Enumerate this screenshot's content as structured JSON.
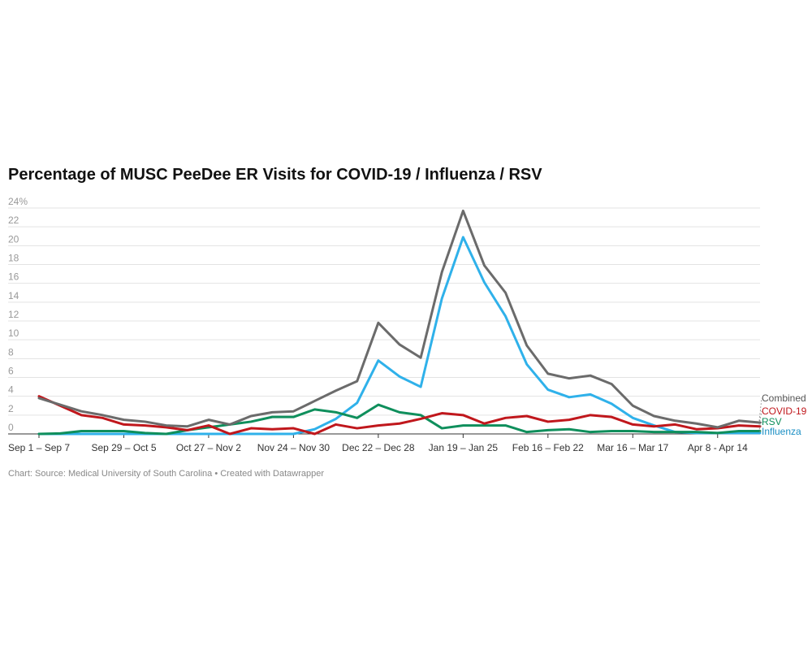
{
  "chart_data": {
    "type": "line",
    "title": "Percentage of MUSC PeeDee ER Visits for COVID-19 / Influenza / RSV",
    "footer": "Chart: Source: Medical University of South Carolina • Created with Datawrapper",
    "y_unit": "%",
    "ylim": [
      0,
      24
    ],
    "yticks": [
      0,
      2,
      4,
      6,
      8,
      10,
      12,
      14,
      16,
      18,
      20,
      22,
      24
    ],
    "grid": true,
    "x_tick_labels": [
      {
        "index": 0,
        "label": "Sep 1 – Sep 7"
      },
      {
        "index": 4,
        "label": "Sep 29 – Oct 5"
      },
      {
        "index": 8,
        "label": "Oct 27 – Nov 2"
      },
      {
        "index": 12,
        "label": "Nov 24 – Nov 30"
      },
      {
        "index": 16,
        "label": "Dec 22 – Dec 28"
      },
      {
        "index": 20,
        "label": "Jan 19 – Jan 25"
      },
      {
        "index": 24,
        "label": "Feb 16 – Feb 22"
      },
      {
        "index": 28,
        "label": "Mar 16 – Mar 17"
      },
      {
        "index": 32,
        "label": "Apr 8 - Apr 14"
      }
    ],
    "series": [
      {
        "name": "Combined",
        "color": "#6b6b6b",
        "values": [
          3.8,
          3.1,
          2.4,
          2.0,
          1.5,
          1.3,
          0.9,
          0.8,
          1.5,
          1.0,
          1.9,
          2.3,
          2.4,
          3.5,
          4.6,
          5.6,
          11.8,
          9.5,
          8.1,
          17.2,
          23.7,
          17.9,
          15.0,
          9.4,
          6.4,
          5.9,
          6.2,
          5.3,
          3.0,
          1.9,
          1.4,
          1.1,
          0.7,
          1.4,
          1.2
        ]
      },
      {
        "name": "COVID-19",
        "color": "#c0171c",
        "values": [
          4.0,
          3.0,
          2.0,
          1.7,
          1.0,
          0.9,
          0.7,
          0.4,
          0.9,
          0.0,
          0.6,
          0.5,
          0.6,
          0.0,
          1.0,
          0.6,
          0.9,
          1.1,
          1.6,
          2.2,
          2.0,
          1.1,
          1.7,
          1.9,
          1.3,
          1.5,
          2.0,
          1.8,
          1.0,
          0.8,
          1.0,
          0.5,
          0.6,
          0.9,
          0.8
        ]
      },
      {
        "name": "RSV",
        "color": "#0f8f5c",
        "values": [
          0.0,
          0.05,
          0.3,
          0.3,
          0.3,
          0.1,
          0.0,
          0.4,
          0.7,
          1.0,
          1.3,
          1.8,
          1.8,
          2.6,
          2.3,
          1.7,
          3.1,
          2.3,
          2.0,
          0.6,
          0.9,
          0.9,
          0.9,
          0.2,
          0.4,
          0.5,
          0.2,
          0.3,
          0.3,
          0.2,
          0.2,
          0.2,
          0.1,
          0.3,
          0.3
        ]
      },
      {
        "name": "Influenza",
        "color": "#2fb1ea",
        "values": [
          0.0,
          0.0,
          0.0,
          0.0,
          0.0,
          0.0,
          0.0,
          0.0,
          0.0,
          0.0,
          0.0,
          0.0,
          0.0,
          0.5,
          1.6,
          3.3,
          7.8,
          6.1,
          5.0,
          14.4,
          20.9,
          16.1,
          12.5,
          7.4,
          4.7,
          3.9,
          4.2,
          3.2,
          1.7,
          0.9,
          0.2,
          0.1,
          0.1,
          0.1,
          0.1
        ]
      }
    ]
  }
}
